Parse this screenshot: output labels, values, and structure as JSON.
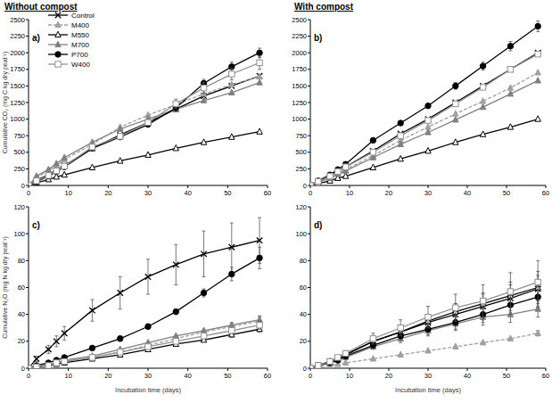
{
  "headers": [
    "Without compost",
    "With compost"
  ],
  "chart_data": [
    {
      "type": "line",
      "title": "a)",
      "ylabel": "Cumulative CO₂ (mg C kg dry peat⁻¹)",
      "legend": "upper-left",
      "grid": false,
      "x": [
        0,
        2,
        5,
        7,
        9,
        16,
        23,
        30,
        37,
        44,
        51,
        58
      ],
      "xlim": [
        0,
        60
      ],
      "xticks": [
        0,
        10,
        20,
        30,
        40,
        50,
        60
      ],
      "ylim": [
        0,
        2500
      ],
      "yticks": [
        0,
        250,
        500,
        750,
        1000,
        1250,
        1500,
        1750,
        2000,
        2250,
        2500
      ],
      "series": [
        {
          "name": "Control",
          "color": "#000000",
          "marker": "x",
          "line_style": "solid",
          "values": [
            0,
            80,
            160,
            230,
            300,
            560,
            760,
            950,
            1150,
            1350,
            1500,
            1650
          ],
          "errors": [
            null,
            null,
            null,
            null,
            null,
            null,
            null,
            null,
            null,
            null,
            null,
            null
          ]
        },
        {
          "name": "M400",
          "color": "#a0a0a0",
          "marker": "triangle",
          "line_style": "dashed",
          "values": [
            0,
            120,
            220,
            300,
            390,
            620,
            880,
            1060,
            1220,
            1380,
            1520,
            1640
          ],
          "errors": [
            null,
            null,
            null,
            null,
            null,
            null,
            null,
            null,
            null,
            null,
            null,
            null
          ]
        },
        {
          "name": "M550",
          "color": "#000000",
          "marker": "triangle-open",
          "line_style": "solid",
          "values": [
            0,
            40,
            90,
            130,
            160,
            270,
            370,
            460,
            560,
            650,
            730,
            810
          ],
          "errors": [
            null,
            null,
            null,
            null,
            null,
            null,
            null,
            null,
            null,
            null,
            null,
            null
          ]
        },
        {
          "name": "M700",
          "color": "#808080",
          "marker": "triangle",
          "line_style": "solid",
          "values": [
            0,
            140,
            240,
            330,
            420,
            650,
            850,
            1000,
            1150,
            1280,
            1400,
            1550
          ],
          "errors": [
            null,
            null,
            null,
            null,
            null,
            null,
            null,
            null,
            null,
            null,
            null,
            null
          ]
        },
        {
          "name": "P700",
          "color": "#000000",
          "marker": "circle",
          "line_style": "solid",
          "values": [
            0,
            60,
            140,
            210,
            280,
            560,
            730,
            920,
            1170,
            1540,
            1790,
            2000
          ],
          "errors": [
            null,
            null,
            null,
            null,
            null,
            null,
            null,
            null,
            60,
            60,
            70,
            70
          ]
        },
        {
          "name": "W400",
          "color": "#909090",
          "marker": "square-open",
          "line_style": "solid",
          "values": [
            0,
            70,
            150,
            220,
            290,
            580,
            740,
            950,
            1230,
            1470,
            1680,
            1850
          ],
          "errors": [
            null,
            null,
            null,
            null,
            null,
            null,
            null,
            null,
            70,
            80,
            90,
            100
          ]
        }
      ]
    },
    {
      "type": "line",
      "title": "b)",
      "grid": false,
      "x": [
        0,
        2,
        5,
        7,
        9,
        16,
        23,
        30,
        37,
        44,
        51,
        58
      ],
      "xlim": [
        0,
        60
      ],
      "xticks": [
        0,
        10,
        20,
        30,
        40,
        50,
        60
      ],
      "ylim": [
        0,
        2500
      ],
      "yticks": [
        0,
        250,
        500,
        750,
        1000,
        1250,
        1500,
        1750,
        2000,
        2250,
        2500
      ],
      "series": [
        {
          "name": "Control",
          "color": "#000000",
          "marker": "x",
          "line_style": "solid",
          "values": [
            0,
            60,
            140,
            210,
            280,
            520,
            780,
            1000,
            1250,
            1500,
            1750,
            2000
          ],
          "errors": [
            null,
            null,
            null,
            null,
            null,
            null,
            null,
            null,
            null,
            null,
            null,
            null
          ]
        },
        {
          "name": "M400",
          "color": "#a0a0a0",
          "marker": "triangle",
          "line_style": "dashed",
          "values": [
            0,
            50,
            120,
            180,
            240,
            450,
            680,
            880,
            1080,
            1270,
            1470,
            1700
          ],
          "errors": [
            null,
            null,
            null,
            null,
            null,
            null,
            null,
            null,
            null,
            null,
            null,
            null
          ]
        },
        {
          "name": "M550",
          "color": "#000000",
          "marker": "triangle-open",
          "line_style": "solid",
          "values": [
            0,
            30,
            70,
            110,
            140,
            270,
            400,
            520,
            650,
            770,
            880,
            1000
          ],
          "errors": [
            null,
            null,
            null,
            null,
            null,
            null,
            null,
            null,
            null,
            null,
            null,
            null
          ]
        },
        {
          "name": "M700",
          "color": "#808080",
          "marker": "triangle",
          "line_style": "solid",
          "values": [
            0,
            50,
            110,
            170,
            220,
            420,
            620,
            800,
            990,
            1180,
            1380,
            1580
          ],
          "errors": [
            null,
            null,
            null,
            null,
            null,
            null,
            null,
            null,
            null,
            null,
            null,
            null
          ]
        },
        {
          "name": "P700",
          "color": "#000000",
          "marker": "circle",
          "line_style": "solid",
          "values": [
            0,
            70,
            160,
            240,
            320,
            680,
            940,
            1200,
            1500,
            1800,
            2100,
            2400
          ],
          "errors": [
            null,
            null,
            null,
            null,
            null,
            null,
            null,
            null,
            50,
            60,
            70,
            80
          ]
        },
        {
          "name": "W400",
          "color": "#909090",
          "marker": "square-open",
          "line_style": "solid",
          "values": [
            0,
            60,
            140,
            210,
            280,
            500,
            750,
            980,
            1230,
            1480,
            1750,
            1980
          ],
          "errors": [
            null,
            null,
            null,
            null,
            null,
            null,
            null,
            null,
            null,
            null,
            null,
            null
          ]
        }
      ]
    },
    {
      "type": "line",
      "title": "c)",
      "ylabel": "Cumulative N₂O (mg N kg dry peat⁻¹)",
      "xlabel": "Incubation time (days)",
      "grid": false,
      "x": [
        0,
        2,
        5,
        7,
        9,
        16,
        23,
        30,
        37,
        44,
        51,
        58
      ],
      "xlim": [
        0,
        60
      ],
      "xticks": [
        0,
        10,
        20,
        30,
        40,
        50,
        60
      ],
      "ylim": [
        0,
        120
      ],
      "yticks": [
        0,
        20,
        40,
        60,
        80,
        100,
        120
      ],
      "series": [
        {
          "name": "Control",
          "color": "#000000",
          "marker": "x",
          "line_style": "solid",
          "values": [
            0,
            7,
            14,
            20,
            26,
            43,
            56,
            68,
            77,
            85,
            90,
            95
          ],
          "errors": [
            null,
            2,
            3,
            4,
            5,
            8,
            12,
            13,
            15,
            17,
            18,
            17
          ]
        },
        {
          "name": "M400",
          "color": "#a0a0a0",
          "marker": "triangle",
          "line_style": "dashed",
          "values": [
            0,
            1,
            2,
            4,
            5,
            8,
            12,
            17,
            22,
            27,
            31,
            35
          ],
          "errors": [
            null,
            null,
            null,
            null,
            null,
            null,
            null,
            null,
            null,
            null,
            2,
            3
          ]
        },
        {
          "name": "M550",
          "color": "#000000",
          "marker": "triangle-open",
          "line_style": "solid",
          "values": [
            0,
            1,
            2,
            3,
            4,
            7,
            10,
            14,
            18,
            21,
            25,
            29
          ],
          "errors": [
            null,
            null,
            null,
            null,
            null,
            null,
            null,
            null,
            null,
            null,
            2,
            2
          ]
        },
        {
          "name": "M700",
          "color": "#808080",
          "marker": "triangle",
          "line_style": "solid",
          "values": [
            0,
            1,
            3,
            4,
            6,
            9,
            14,
            19,
            24,
            28,
            32,
            36
          ],
          "errors": [
            null,
            null,
            null,
            null,
            null,
            null,
            null,
            null,
            null,
            null,
            2,
            3
          ]
        },
        {
          "name": "P700",
          "color": "#000000",
          "marker": "circle",
          "line_style": "solid",
          "values": [
            0,
            2,
            4,
            6,
            8,
            15,
            22,
            31,
            42,
            56,
            70,
            82
          ],
          "errors": [
            null,
            null,
            null,
            null,
            null,
            1,
            2,
            2,
            2,
            3,
            5,
            8
          ]
        },
        {
          "name": "W400",
          "color": "#909090",
          "marker": "square-open",
          "line_style": "solid",
          "values": [
            0,
            1,
            2,
            4,
            5,
            8,
            12,
            16,
            20,
            24,
            28,
            32
          ],
          "errors": [
            null,
            null,
            null,
            null,
            null,
            null,
            null,
            null,
            null,
            null,
            2,
            3
          ]
        }
      ]
    },
    {
      "type": "line",
      "title": "d)",
      "xlabel": "Incubation time (days)",
      "grid": false,
      "x": [
        0,
        2,
        5,
        7,
        9,
        16,
        23,
        30,
        37,
        44,
        51,
        58
      ],
      "xlim": [
        0,
        60
      ],
      "xticks": [
        0,
        10,
        20,
        30,
        40,
        50,
        60
      ],
      "ylim": [
        0,
        120
      ],
      "yticks": [
        0,
        20,
        40,
        60,
        80,
        100,
        120
      ],
      "series": [
        {
          "name": "Control",
          "color": "#000000",
          "marker": "x",
          "line_style": "solid",
          "values": [
            0,
            2,
            5,
            7,
            10,
            20,
            27,
            34,
            40,
            46,
            52,
            59
          ],
          "errors": [
            null,
            null,
            1,
            1,
            2,
            3,
            5,
            6,
            8,
            10,
            12,
            13
          ]
        },
        {
          "name": "M400",
          "color": "#a0a0a0",
          "marker": "triangle",
          "line_style": "dashed",
          "values": [
            0,
            1,
            2,
            3,
            4,
            7,
            10,
            13,
            16,
            19,
            22,
            26
          ],
          "errors": [
            null,
            null,
            null,
            null,
            null,
            null,
            null,
            null,
            null,
            null,
            null,
            2
          ]
        },
        {
          "name": "M550",
          "color": "#000000",
          "marker": "triangle-open",
          "line_style": "solid",
          "values": [
            0,
            2,
            5,
            7,
            10,
            20,
            27,
            35,
            42,
            48,
            54,
            60
          ],
          "errors": [
            null,
            null,
            null,
            null,
            null,
            3,
            4,
            5,
            6,
            7,
            8,
            9
          ]
        },
        {
          "name": "M700",
          "color": "#808080",
          "marker": "triangle",
          "line_style": "solid",
          "values": [
            0,
            2,
            4,
            6,
            8,
            16,
            22,
            28,
            33,
            38,
            40,
            44
          ],
          "errors": [
            null,
            null,
            null,
            null,
            null,
            2,
            3,
            4,
            5,
            6,
            6,
            6
          ]
        },
        {
          "name": "P700",
          "color": "#000000",
          "marker": "circle",
          "line_style": "solid",
          "values": [
            0,
            2,
            4,
            6,
            9,
            17,
            24,
            29,
            34,
            40,
            47,
            53
          ],
          "errors": [
            null,
            null,
            null,
            null,
            null,
            2,
            3,
            4,
            5,
            6,
            7,
            8
          ]
        },
        {
          "name": "W400",
          "color": "#909090",
          "marker": "square-open",
          "line_style": "solid",
          "values": [
            0,
            2,
            5,
            8,
            11,
            22,
            30,
            38,
            45,
            50,
            57,
            64
          ],
          "errors": [
            null,
            null,
            1,
            1,
            2,
            4,
            6,
            8,
            10,
            12,
            14,
            16
          ]
        }
      ]
    }
  ]
}
